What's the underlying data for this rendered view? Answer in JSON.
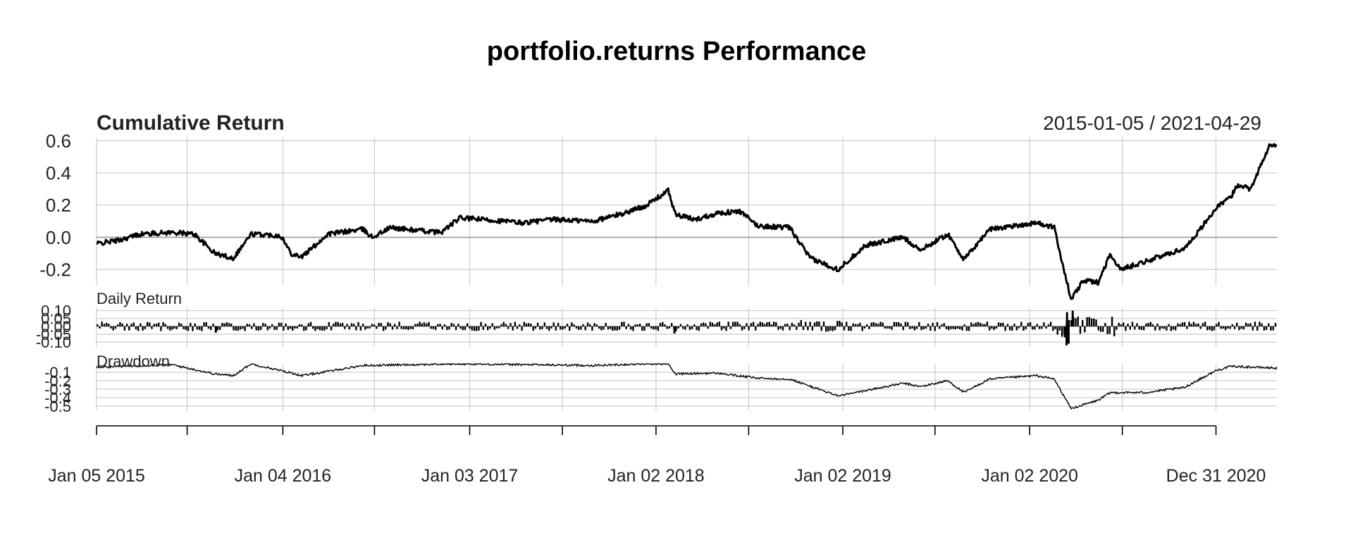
{
  "title": "portfolio.returns Performance",
  "colors": {
    "line": "#000000",
    "grid": "#cfcfcf",
    "zero": "#9a9a9a",
    "text": "#222222"
  },
  "chart_data": [
    {
      "type": "line",
      "panel": "cumulative",
      "title": "Cumulative Return",
      "date_range": "2015-01-05 / 2021-04-29",
      "xlabel": "",
      "ylabel": "",
      "ylim": [
        -0.3,
        0.62
      ],
      "yticks": [
        0.6,
        0.4,
        0.2,
        0.0,
        -0.2
      ],
      "ytick_labels": [
        "0.6",
        "0.4",
        "0.2",
        "0.0",
        "-0.2"
      ],
      "grid": true,
      "series": [
        {
          "x": [
            "2015-01-05",
            "2015-02-15",
            "2015-04-01",
            "2015-06-01",
            "2015-07-15",
            "2015-08-24",
            "2015-09-29",
            "2015-11-03",
            "2015-12-31",
            "2016-01-20",
            "2016-02-11",
            "2016-04-01",
            "2016-06-08",
            "2016-06-27",
            "2016-08-01",
            "2016-10-01",
            "2016-11-08",
            "2016-12-15",
            "2017-02-01",
            "2017-04-15",
            "2017-06-15",
            "2017-09-01",
            "2017-11-01",
            "2017-12-15",
            "2018-01-26",
            "2018-02-09",
            "2018-03-20",
            "2018-05-01",
            "2018-06-15",
            "2018-07-20",
            "2018-09-20",
            "2018-10-30",
            "2018-12-24",
            "2019-02-15",
            "2019-04-30",
            "2019-06-03",
            "2019-07-26",
            "2019-08-27",
            "2019-10-15",
            "2020-01-15",
            "2020-02-19",
            "2020-03-23",
            "2020-04-15",
            "2020-05-15",
            "2020-06-08",
            "2020-06-26",
            "2020-08-15",
            "2020-10-30",
            "2020-11-30",
            "2020-12-31",
            "2021-01-29",
            "2021-02-12",
            "2021-03-08",
            "2021-04-15",
            "2021-04-29"
          ],
          "y": [
            -0.04,
            -0.02,
            0.02,
            0.03,
            0.02,
            -0.1,
            -0.13,
            0.02,
            0.01,
            -0.1,
            -0.12,
            0.02,
            0.05,
            0.0,
            0.06,
            0.04,
            0.03,
            0.12,
            0.11,
            0.09,
            0.11,
            0.1,
            0.15,
            0.2,
            0.29,
            0.14,
            0.11,
            0.15,
            0.16,
            0.07,
            0.06,
            -0.13,
            -0.2,
            -0.05,
            0.0,
            -0.08,
            0.02,
            -0.14,
            0.05,
            0.09,
            0.06,
            -0.39,
            -0.27,
            -0.28,
            -0.1,
            -0.2,
            -0.15,
            -0.07,
            0.05,
            0.18,
            0.25,
            0.33,
            0.3,
            0.57,
            0.57
          ]
        }
      ]
    },
    {
      "type": "bar",
      "panel": "daily",
      "title": "Daily Return",
      "xlabel": "",
      "ylabel": "",
      "ylim": [
        -0.13,
        0.12
      ],
      "yticks": [
        0.1,
        0.05,
        0.0,
        -0.05,
        -0.1
      ],
      "ytick_labels": [
        "0.10",
        "0.05",
        "0.00",
        "-0.05",
        "-0.10"
      ],
      "grid": true,
      "notable_values": [
        {
          "date": "2020-03-09",
          "value": -0.07
        },
        {
          "date": "2020-03-12",
          "value": -0.12
        },
        {
          "date": "2020-03-13",
          "value": 0.09
        },
        {
          "date": "2020-03-16",
          "value": -0.11
        },
        {
          "date": "2020-03-24",
          "value": 0.1
        },
        {
          "date": "2018-02-05",
          "value": -0.045
        },
        {
          "date": "2015-08-24",
          "value": -0.04
        }
      ]
    },
    {
      "type": "line",
      "panel": "drawdown",
      "title": "Drawdown",
      "xlabel": "",
      "ylabel": "",
      "ylim": [
        -0.55,
        0.0
      ],
      "yticks": [
        -0.1,
        -0.2,
        -0.3,
        -0.4,
        -0.5
      ],
      "ytick_labels": [
        "-0.1",
        "-0.2",
        "-0.3",
        "-0.4",
        "-0.5"
      ],
      "grid": true,
      "series": [
        {
          "x": [
            "2015-01-05",
            "2015-06-01",
            "2015-08-24",
            "2015-09-29",
            "2015-11-03",
            "2016-02-11",
            "2016-06-08",
            "2016-12-15",
            "2017-09-01",
            "2017-12-15",
            "2018-01-26",
            "2018-02-09",
            "2018-05-01",
            "2018-07-20",
            "2018-09-20",
            "2018-12-24",
            "2019-04-30",
            "2019-06-03",
            "2019-07-26",
            "2019-08-27",
            "2019-10-15",
            "2020-01-15",
            "2020-02-19",
            "2020-03-23",
            "2020-05-15",
            "2020-06-08",
            "2020-08-15",
            "2020-10-30",
            "2020-12-31",
            "2021-01-29",
            "2021-04-29"
          ],
          "y": [
            -0.04,
            -0.01,
            -0.12,
            -0.14,
            0.0,
            -0.14,
            -0.02,
            0.0,
            -0.02,
            0.0,
            0.0,
            -0.12,
            -0.11,
            -0.17,
            -0.18,
            -0.38,
            -0.23,
            -0.27,
            -0.2,
            -0.34,
            -0.18,
            -0.14,
            -0.18,
            -0.53,
            -0.43,
            -0.34,
            -0.34,
            -0.28,
            -0.08,
            -0.03,
            -0.05
          ]
        }
      ]
    }
  ],
  "x_axis": {
    "range": [
      "2015-01-05",
      "2021-04-29"
    ],
    "tick_dates": [
      "2015-01-05",
      "2015-07-01",
      "2016-01-04",
      "2016-07-01",
      "2017-01-03",
      "2017-07-03",
      "2018-01-02",
      "2018-07-02",
      "2019-01-02",
      "2019-07-01",
      "2020-01-02",
      "2020-07-01",
      "2020-12-31"
    ],
    "label_dates": [
      "2015-01-05",
      "2016-01-04",
      "2017-01-03",
      "2018-01-02",
      "2019-01-02",
      "2020-01-02",
      "2020-12-31"
    ],
    "labels": [
      "Jan 05 2015",
      "Jan 04 2016",
      "Jan 03 2017",
      "Jan 02 2018",
      "Jan 02 2019",
      "Jan 02 2020",
      "Dec 31 2020"
    ]
  }
}
